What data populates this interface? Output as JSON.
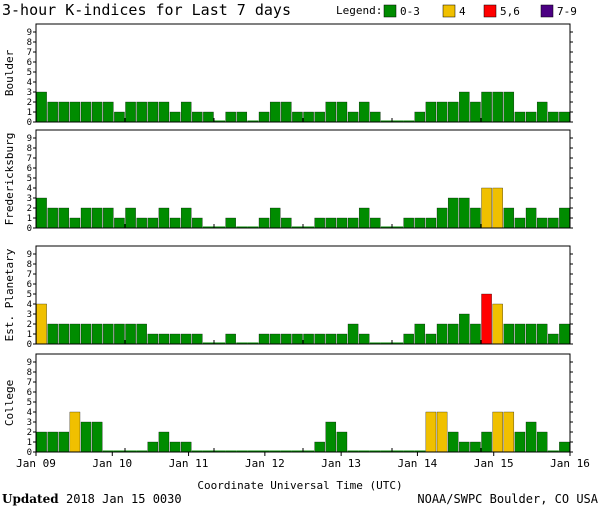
{
  "chart_data": {
    "type": "bar",
    "title": "3-hour K-indices for Last 7 days",
    "legend": {
      "title": "Legend:",
      "items": [
        {
          "label": "0-3",
          "color": "#008c00"
        },
        {
          "label": "4",
          "color": "#f0c000"
        },
        {
          "label": "5,6",
          "color": "#ff0000"
        },
        {
          "label": "7-9",
          "color": "#4b0082"
        }
      ]
    },
    "xlabel": "Coordinate Universal Time (UTC)",
    "x_tick_labels": [
      "Jan 09",
      "Jan 10",
      "Jan 11",
      "Jan 12",
      "Jan 13",
      "Jan 14",
      "Jan 15",
      "Jan 16"
    ],
    "ylim": [
      0,
      9
    ],
    "y_ticks": [
      "0",
      "1",
      "2",
      "3",
      "4",
      "5",
      "6",
      "7",
      "8",
      "9"
    ],
    "bins_per_day": 8,
    "panels": [
      {
        "label": "Boulder",
        "values": [
          3,
          2,
          2,
          2,
          2,
          2,
          2,
          1,
          2,
          2,
          2,
          2,
          1,
          2,
          1,
          1,
          0,
          1,
          1,
          0,
          1,
          2,
          2,
          1,
          1,
          1,
          2,
          2,
          1,
          2,
          1,
          0,
          0,
          0,
          1,
          2,
          2,
          2,
          3,
          2,
          3,
          3,
          3,
          1,
          1,
          2,
          1,
          1
        ]
      },
      {
        "label": "Fredericksburg",
        "values": [
          3,
          2,
          2,
          1,
          2,
          2,
          2,
          1,
          2,
          1,
          1,
          2,
          1,
          2,
          1,
          0,
          0,
          1,
          0,
          0,
          1,
          2,
          1,
          0,
          0,
          1,
          1,
          1,
          1,
          2,
          1,
          0,
          0,
          1,
          1,
          1,
          2,
          3,
          3,
          2,
          4,
          4,
          2,
          1,
          2,
          1,
          1,
          2
        ]
      },
      {
        "label": "Est. Planetary",
        "values": [
          4,
          2,
          2,
          2,
          2,
          2,
          2,
          2,
          2,
          2,
          1,
          1,
          1,
          1,
          1,
          0,
          0,
          1,
          0,
          0,
          1,
          1,
          1,
          1,
          1,
          1,
          1,
          1,
          2,
          1,
          0,
          0,
          0,
          1,
          2,
          1,
          2,
          2,
          3,
          2,
          5,
          4,
          2,
          2,
          2,
          2,
          1,
          2
        ]
      },
      {
        "label": "College",
        "values": [
          2,
          2,
          2,
          4,
          3,
          3,
          0,
          0,
          0,
          0,
          1,
          2,
          1,
          1,
          0,
          0,
          0,
          0,
          0,
          0,
          0,
          0,
          0,
          0,
          0,
          1,
          3,
          2,
          0,
          0,
          0,
          0,
          0,
          0,
          0,
          4,
          4,
          2,
          1,
          1,
          2,
          4,
          4,
          2,
          3,
          2,
          0,
          1
        ]
      }
    ]
  },
  "footer": {
    "updated_label": "Updated",
    "updated_value": "2018 Jan 15 0030",
    "credit": "NOAA/SWPC Boulder, CO USA"
  }
}
